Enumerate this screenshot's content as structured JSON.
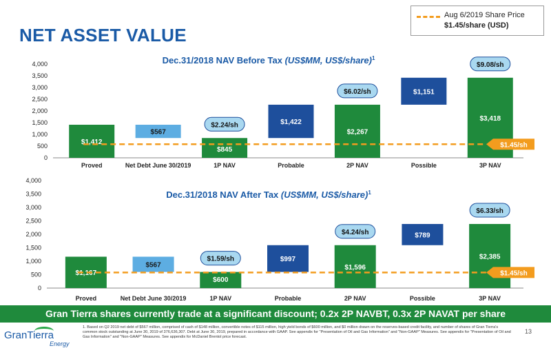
{
  "page": {
    "title": "NET ASSET VALUE",
    "legend_line1": "Aug 6/2019 Share Price",
    "legend_line2": "$1.45/share (USD)",
    "banner": "Gran Tierra shares currently trade at a significant discount; 0.2x 2P NAVBT, 0.3x 2P NAVAT per share",
    "footnote": "1. Based on Q2 2019 net debt of $567 million, comprised of cash of $148 million, convertible notes of $115 million, high yield bonds of $600 million, and $0 million drawn on the reserves-based credit facility, and number of shares of Gran Tierra's common stock outstanding at June 30, 2019 of 376,636,307. Debt at June 30, 2019, prepared in accordance with GAAP. See appendix for \"Presentation of Oil and Gas Information\" and \"Non-GAAP\" Measures. See appendix for \"Presentation of Oil and Gas Information\" and \"Non-GAAP\" Measures. See appendix for McDaniel Brentol price forecast.",
    "page_number": "13",
    "logo_text": "GranTierra",
    "logo_sub": "Energy"
  },
  "colors": {
    "green": "#1f8a3c",
    "light_blue": "#5dade2",
    "dark_blue": "#1e4f9c",
    "orange": "#f39c1e",
    "title_blue": "#1a5aa6"
  },
  "chart_data": [
    {
      "type": "bar",
      "subtype": "waterfall",
      "title": "Dec.31/2018 NAV Before Tax ",
      "title_italic": "(US$MM, US$/share)",
      "title_sup": "1",
      "categories": [
        "Proved",
        "Net Debt June 30/2019",
        "1P NAV",
        "Probable",
        "2P NAV",
        "Possible",
        "3P NAV"
      ],
      "bars": [
        {
          "category": "Proved",
          "kind": "total",
          "low": 0,
          "high": 1412,
          "label": "$1,412",
          "color": "green"
        },
        {
          "category": "Net Debt June 30/2019",
          "kind": "decrease",
          "low": 845,
          "high": 1412,
          "label": "$567",
          "color": "light_blue"
        },
        {
          "category": "1P NAV",
          "kind": "total",
          "low": 0,
          "high": 845,
          "label": "$845",
          "color": "green"
        },
        {
          "category": "Probable",
          "kind": "increase",
          "low": 845,
          "high": 2267,
          "label": "$1,422",
          "color": "dark_blue"
        },
        {
          "category": "2P NAV",
          "kind": "total",
          "low": 0,
          "high": 2267,
          "label": "$2,267",
          "color": "green"
        },
        {
          "category": "Possible",
          "kind": "increase",
          "low": 2267,
          "high": 3418,
          "label": "$1,151",
          "color": "dark_blue"
        },
        {
          "category": "3P NAV",
          "kind": "total",
          "low": 0,
          "high": 3418,
          "label": "$3,418",
          "color": "green"
        }
      ],
      "per_share_badges": [
        {
          "category": "1P NAV",
          "label": "$2.24/sh"
        },
        {
          "category": "2P NAV",
          "label": "$6.02/sh"
        },
        {
          "category": "3P NAV",
          "label": "$9.08/sh"
        }
      ],
      "reference_line": {
        "value": 580,
        "label": "$1.45/sh"
      },
      "ylim": [
        0,
        4000
      ],
      "yticks": [
        "0",
        "500",
        "1,000",
        "1,500",
        "2,000",
        "2,500",
        "3,000",
        "3,500",
        "4,000"
      ],
      "xlabel": "",
      "ylabel": ""
    },
    {
      "type": "bar",
      "subtype": "waterfall",
      "title": "Dec.31/2018 NAV After Tax ",
      "title_italic": "(US$MM, US$/share)",
      "title_sup": "1",
      "categories": [
        "Proved",
        "Net Debt June 30/2019",
        "1P NAV",
        "Probable",
        "2P NAV",
        "Possible",
        "3P NAV"
      ],
      "bars": [
        {
          "category": "Proved",
          "kind": "total",
          "low": 0,
          "high": 1167,
          "label": "$1,167",
          "color": "green"
        },
        {
          "category": "Net Debt June 30/2019",
          "kind": "decrease",
          "low": 600,
          "high": 1167,
          "label": "$567",
          "color": "light_blue"
        },
        {
          "category": "1P NAV",
          "kind": "total",
          "low": 0,
          "high": 600,
          "label": "$600",
          "color": "green"
        },
        {
          "category": "Probable",
          "kind": "increase",
          "low": 600,
          "high": 1596,
          "label": "$997",
          "color": "dark_blue"
        },
        {
          "category": "2P NAV",
          "kind": "total",
          "low": 0,
          "high": 1596,
          "label": "$1,596",
          "color": "green"
        },
        {
          "category": "Possible",
          "kind": "increase",
          "low": 1596,
          "high": 2385,
          "label": "$789",
          "color": "dark_blue"
        },
        {
          "category": "3P NAV",
          "kind": "total",
          "low": 0,
          "high": 2385,
          "label": "$2,385",
          "color": "green"
        }
      ],
      "per_share_badges": [
        {
          "category": "1P NAV",
          "label": "$1.59/sh"
        },
        {
          "category": "2P NAV",
          "label": "$4.24/sh"
        },
        {
          "category": "3P NAV",
          "label": "$6.33/sh"
        }
      ],
      "reference_line": {
        "value": 580,
        "label": "$1.45/sh"
      },
      "ylim": [
        0,
        4000
      ],
      "yticks": [
        "0",
        "500",
        "1,000",
        "1,500",
        "2,000",
        "2,500",
        "3,000",
        "3,500",
        "4,000"
      ],
      "xlabel": "",
      "ylabel": ""
    }
  ]
}
